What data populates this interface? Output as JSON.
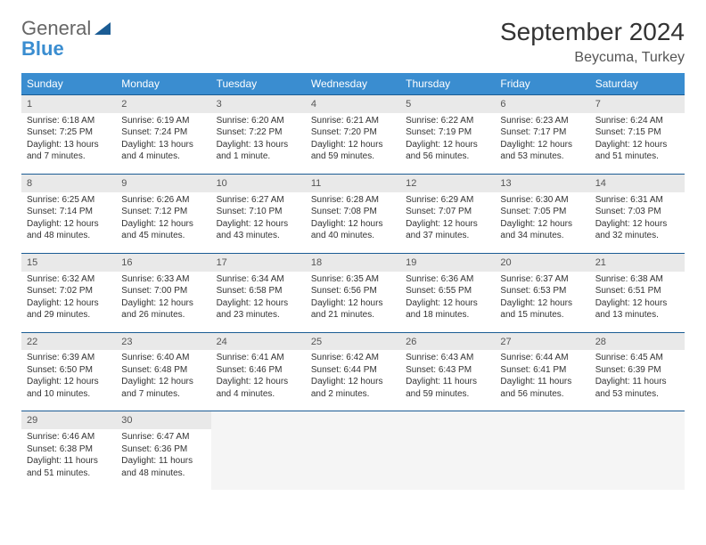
{
  "logo": {
    "line1": "General",
    "line2": "Blue"
  },
  "title": "September 2024",
  "location": "Beycuma, Turkey",
  "colors": {
    "header_bg": "#3a8dd0",
    "header_text": "#ffffff",
    "border": "#1b5c94",
    "daynum_bg": "#e9e9e9",
    "body_bg": "#ffffff"
  },
  "weekdays": [
    "Sunday",
    "Monday",
    "Tuesday",
    "Wednesday",
    "Thursday",
    "Friday",
    "Saturday"
  ],
  "weeks": [
    [
      {
        "n": "1",
        "sr": "Sunrise: 6:18 AM",
        "ss": "Sunset: 7:25 PM",
        "dl": "Daylight: 13 hours and 7 minutes."
      },
      {
        "n": "2",
        "sr": "Sunrise: 6:19 AM",
        "ss": "Sunset: 7:24 PM",
        "dl": "Daylight: 13 hours and 4 minutes."
      },
      {
        "n": "3",
        "sr": "Sunrise: 6:20 AM",
        "ss": "Sunset: 7:22 PM",
        "dl": "Daylight: 13 hours and 1 minute."
      },
      {
        "n": "4",
        "sr": "Sunrise: 6:21 AM",
        "ss": "Sunset: 7:20 PM",
        "dl": "Daylight: 12 hours and 59 minutes."
      },
      {
        "n": "5",
        "sr": "Sunrise: 6:22 AM",
        "ss": "Sunset: 7:19 PM",
        "dl": "Daylight: 12 hours and 56 minutes."
      },
      {
        "n": "6",
        "sr": "Sunrise: 6:23 AM",
        "ss": "Sunset: 7:17 PM",
        "dl": "Daylight: 12 hours and 53 minutes."
      },
      {
        "n": "7",
        "sr": "Sunrise: 6:24 AM",
        "ss": "Sunset: 7:15 PM",
        "dl": "Daylight: 12 hours and 51 minutes."
      }
    ],
    [
      {
        "n": "8",
        "sr": "Sunrise: 6:25 AM",
        "ss": "Sunset: 7:14 PM",
        "dl": "Daylight: 12 hours and 48 minutes."
      },
      {
        "n": "9",
        "sr": "Sunrise: 6:26 AM",
        "ss": "Sunset: 7:12 PM",
        "dl": "Daylight: 12 hours and 45 minutes."
      },
      {
        "n": "10",
        "sr": "Sunrise: 6:27 AM",
        "ss": "Sunset: 7:10 PM",
        "dl": "Daylight: 12 hours and 43 minutes."
      },
      {
        "n": "11",
        "sr": "Sunrise: 6:28 AM",
        "ss": "Sunset: 7:08 PM",
        "dl": "Daylight: 12 hours and 40 minutes."
      },
      {
        "n": "12",
        "sr": "Sunrise: 6:29 AM",
        "ss": "Sunset: 7:07 PM",
        "dl": "Daylight: 12 hours and 37 minutes."
      },
      {
        "n": "13",
        "sr": "Sunrise: 6:30 AM",
        "ss": "Sunset: 7:05 PM",
        "dl": "Daylight: 12 hours and 34 minutes."
      },
      {
        "n": "14",
        "sr": "Sunrise: 6:31 AM",
        "ss": "Sunset: 7:03 PM",
        "dl": "Daylight: 12 hours and 32 minutes."
      }
    ],
    [
      {
        "n": "15",
        "sr": "Sunrise: 6:32 AM",
        "ss": "Sunset: 7:02 PM",
        "dl": "Daylight: 12 hours and 29 minutes."
      },
      {
        "n": "16",
        "sr": "Sunrise: 6:33 AM",
        "ss": "Sunset: 7:00 PM",
        "dl": "Daylight: 12 hours and 26 minutes."
      },
      {
        "n": "17",
        "sr": "Sunrise: 6:34 AM",
        "ss": "Sunset: 6:58 PM",
        "dl": "Daylight: 12 hours and 23 minutes."
      },
      {
        "n": "18",
        "sr": "Sunrise: 6:35 AM",
        "ss": "Sunset: 6:56 PM",
        "dl": "Daylight: 12 hours and 21 minutes."
      },
      {
        "n": "19",
        "sr": "Sunrise: 6:36 AM",
        "ss": "Sunset: 6:55 PM",
        "dl": "Daylight: 12 hours and 18 minutes."
      },
      {
        "n": "20",
        "sr": "Sunrise: 6:37 AM",
        "ss": "Sunset: 6:53 PM",
        "dl": "Daylight: 12 hours and 15 minutes."
      },
      {
        "n": "21",
        "sr": "Sunrise: 6:38 AM",
        "ss": "Sunset: 6:51 PM",
        "dl": "Daylight: 12 hours and 13 minutes."
      }
    ],
    [
      {
        "n": "22",
        "sr": "Sunrise: 6:39 AM",
        "ss": "Sunset: 6:50 PM",
        "dl": "Daylight: 12 hours and 10 minutes."
      },
      {
        "n": "23",
        "sr": "Sunrise: 6:40 AM",
        "ss": "Sunset: 6:48 PM",
        "dl": "Daylight: 12 hours and 7 minutes."
      },
      {
        "n": "24",
        "sr": "Sunrise: 6:41 AM",
        "ss": "Sunset: 6:46 PM",
        "dl": "Daylight: 12 hours and 4 minutes."
      },
      {
        "n": "25",
        "sr": "Sunrise: 6:42 AM",
        "ss": "Sunset: 6:44 PM",
        "dl": "Daylight: 12 hours and 2 minutes."
      },
      {
        "n": "26",
        "sr": "Sunrise: 6:43 AM",
        "ss": "Sunset: 6:43 PM",
        "dl": "Daylight: 11 hours and 59 minutes."
      },
      {
        "n": "27",
        "sr": "Sunrise: 6:44 AM",
        "ss": "Sunset: 6:41 PM",
        "dl": "Daylight: 11 hours and 56 minutes."
      },
      {
        "n": "28",
        "sr": "Sunrise: 6:45 AM",
        "ss": "Sunset: 6:39 PM",
        "dl": "Daylight: 11 hours and 53 minutes."
      }
    ],
    [
      {
        "n": "29",
        "sr": "Sunrise: 6:46 AM",
        "ss": "Sunset: 6:38 PM",
        "dl": "Daylight: 11 hours and 51 minutes."
      },
      {
        "n": "30",
        "sr": "Sunrise: 6:47 AM",
        "ss": "Sunset: 6:36 PM",
        "dl": "Daylight: 11 hours and 48 minutes."
      },
      null,
      null,
      null,
      null,
      null
    ]
  ]
}
